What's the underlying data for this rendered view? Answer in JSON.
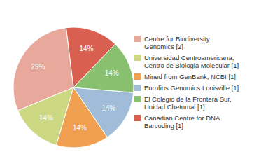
{
  "chart_data": {
    "type": "pie",
    "categories": [
      "Centre for Biodiversity\nGenomics [2]",
      "Universidad Centroamericana,\nCentro de Biologia Molecular [1]",
      "Mined from GenBank, NCBI [1]",
      "Eurofins Genomics Louisville [1]",
      "El Colegio de la Frontera Sur,\nUnidad Chetumal [1]",
      "Canadian Centre for DNA\nBarcoding [1]"
    ],
    "values": [
      29,
      14,
      14,
      14,
      14,
      14
    ],
    "value_labels": [
      "29%",
      "14%",
      "14%",
      "14%",
      "14%",
      "14%"
    ],
    "colors": [
      "#e8a89c",
      "#cdd882",
      "#f0a050",
      "#a0bcd8",
      "#88c070",
      "#d96050"
    ],
    "data_labels": true,
    "legend": "right"
  }
}
